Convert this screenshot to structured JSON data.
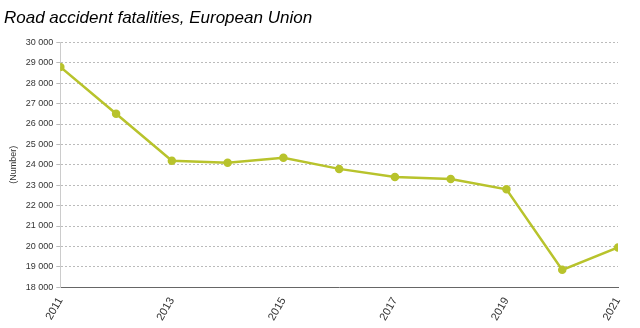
{
  "chart_data": {
    "type": "line",
    "title": "Road accident fatalities, European Union",
    "y_label": "(Number)",
    "x": [
      2011,
      2012,
      2013,
      2014,
      2015,
      2016,
      2017,
      2018,
      2019,
      2020,
      2021
    ],
    "values": [
      28800,
      26500,
      24200,
      24100,
      24350,
      23800,
      23400,
      23300,
      22800,
      18850,
      19950
    ],
    "color": "#b8c32c",
    "marker": "circle",
    "xlim": [
      2011,
      2021
    ],
    "xticks": [
      2011,
      2013,
      2015,
      2017,
      2019,
      2021
    ],
    "ylim": [
      18000,
      30000
    ],
    "yticks": [
      {
        "value": 18000,
        "label": "18 000"
      },
      {
        "value": 19000,
        "label": "19 000"
      },
      {
        "value": 20000,
        "label": "20 000"
      },
      {
        "value": 21000,
        "label": "21 000"
      },
      {
        "value": 22000,
        "label": "22 000"
      },
      {
        "value": 23000,
        "label": "23 000"
      },
      {
        "value": 24000,
        "label": "24 000"
      },
      {
        "value": 25000,
        "label": "25 000"
      },
      {
        "value": 26000,
        "label": "26 000"
      },
      {
        "value": 27000,
        "label": "27 000"
      },
      {
        "value": 28000,
        "label": "28 000"
      },
      {
        "value": 29000,
        "label": "29 000"
      },
      {
        "value": 30000,
        "label": "30 000"
      }
    ],
    "grid": true
  }
}
